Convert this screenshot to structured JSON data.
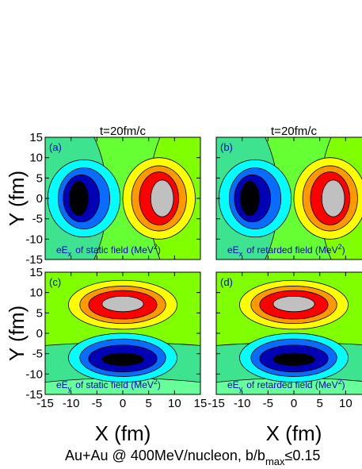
{
  "chart_data": [
    {
      "type": "contour",
      "panel": "(a)",
      "title": "t=20fm/c",
      "annotation": [
        "eE",
        "x",
        "of static field (MeV",
        "2",
        ")"
      ],
      "ylabel": "Y (fm)",
      "xlim": [
        -15,
        15
      ],
      "ylim": [
        -15,
        15
      ],
      "xticks": [
        -15,
        -10,
        -5,
        0,
        5,
        10,
        15
      ],
      "yticks": [
        -15,
        -10,
        -5,
        0,
        5,
        10,
        15
      ]
    },
    {
      "type": "contour",
      "panel": "(b)",
      "title": "t=20fm/c",
      "annotation": [
        "eE",
        "x",
        "of retarded field (MeV",
        "2",
        ")"
      ],
      "xlim": [
        -15,
        15
      ],
      "ylim": [
        -15,
        15
      ],
      "xticks": [
        -15,
        -10,
        -5,
        0,
        5,
        10,
        15
      ],
      "yticks": [
        -15,
        -10,
        -5,
        0,
        5,
        10,
        15
      ]
    },
    {
      "type": "contour",
      "panel": "(c)",
      "annotation": [
        "eE",
        "y",
        "of static field (MeV",
        "2",
        ")"
      ],
      "xlabel": "X (fm)",
      "ylabel": "Y (fm)",
      "xlim": [
        -15,
        15
      ],
      "ylim": [
        -15,
        15
      ],
      "xticks": [
        -15,
        -10,
        -5,
        0,
        5,
        10,
        15
      ],
      "yticks": [
        -15,
        -10,
        -5,
        0,
        5,
        10,
        15
      ]
    },
    {
      "type": "contour",
      "panel": "(d)",
      "annotation": [
        "eE",
        "y",
        "of retarded field (MeV",
        "2",
        ")"
      ],
      "xlabel": "X (fm)",
      "xlim": [
        -15,
        15
      ],
      "ylim": [
        -15,
        15
      ],
      "xticks": [
        -15,
        -10,
        -5,
        0,
        5,
        10,
        15
      ],
      "yticks": [
        -15,
        -10,
        -5,
        0,
        5,
        10,
        15
      ]
    }
  ],
  "caption": [
    "Au+Au @ 400MeV/nucleon, b/b",
    "max",
    "≤0.15"
  ]
}
